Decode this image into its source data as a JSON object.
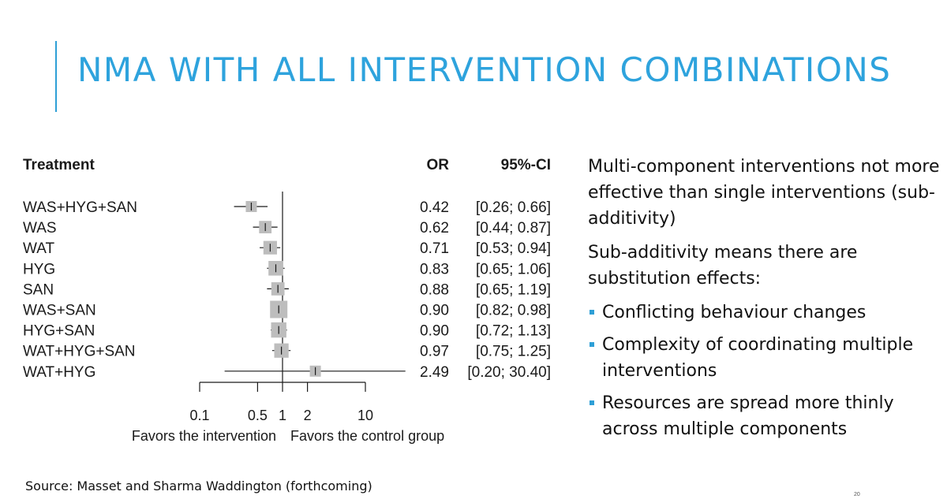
{
  "slide": {
    "title": "NMA WITH ALL INTERVENTION COMBINATIONS",
    "source": "Source: Masset and Sharma Waddington (forthcoming)",
    "page_number": "20"
  },
  "bullets": {
    "para1": "Multi-component interventions not more effective than single interventions (sub-additivity)",
    "para2": "Sub-additivity means there are substitution effects:",
    "items": [
      "Conflicting behaviour changes",
      "Complexity of coordinating multiple interventions",
      "Resources are spread more thinly across multiple components"
    ]
  },
  "chart_data": {
    "type": "forest",
    "headers": {
      "treatment": "Treatment",
      "or": "OR",
      "ci": "95%-CI"
    },
    "x_scale": "log",
    "xlim": [
      0.1,
      10
    ],
    "ticks": [
      0.1,
      0.5,
      1,
      2,
      10
    ],
    "tick_labels": [
      "0.1",
      "0.5",
      "1",
      "2",
      "10"
    ],
    "reference_line": 1,
    "favors_left": "Favors the intervention",
    "favors_right": "Favors the control group",
    "rows": [
      {
        "treatment": "WAS+HYG+SAN",
        "or": 0.42,
        "lo": 0.26,
        "hi": 0.66,
        "or_text": "0.42",
        "ci_text": "[0.26;  0.66]"
      },
      {
        "treatment": "WAS",
        "or": 0.62,
        "lo": 0.44,
        "hi": 0.87,
        "or_text": "0.62",
        "ci_text": "[0.44;  0.87]"
      },
      {
        "treatment": "WAT",
        "or": 0.71,
        "lo": 0.53,
        "hi": 0.94,
        "or_text": "0.71",
        "ci_text": "[0.53;  0.94]"
      },
      {
        "treatment": "HYG",
        "or": 0.83,
        "lo": 0.65,
        "hi": 1.06,
        "or_text": "0.83",
        "ci_text": "[0.65;  1.06]"
      },
      {
        "treatment": "SAN",
        "or": 0.88,
        "lo": 0.65,
        "hi": 1.19,
        "or_text": "0.88",
        "ci_text": "[0.65;  1.19]"
      },
      {
        "treatment": "WAS+SAN",
        "or": 0.9,
        "lo": 0.82,
        "hi": 0.98,
        "or_text": "0.90",
        "ci_text": "[0.82;  0.98]"
      },
      {
        "treatment": "HYG+SAN",
        "or": 0.9,
        "lo": 0.72,
        "hi": 1.13,
        "or_text": "0.90",
        "ci_text": "[0.72;  1.13]"
      },
      {
        "treatment": "WAT+HYG+SAN",
        "or": 0.97,
        "lo": 0.75,
        "hi": 1.25,
        "or_text": "0.97",
        "ci_text": "[0.75;  1.25]"
      },
      {
        "treatment": "WAT+HYG",
        "or": 2.49,
        "lo": 0.2,
        "hi": 30.4,
        "or_text": "2.49",
        "ci_text": "[0.20; 30.40]"
      }
    ],
    "colors": {
      "box": "#bdbdbd",
      "line": "#1a1a1a"
    }
  }
}
